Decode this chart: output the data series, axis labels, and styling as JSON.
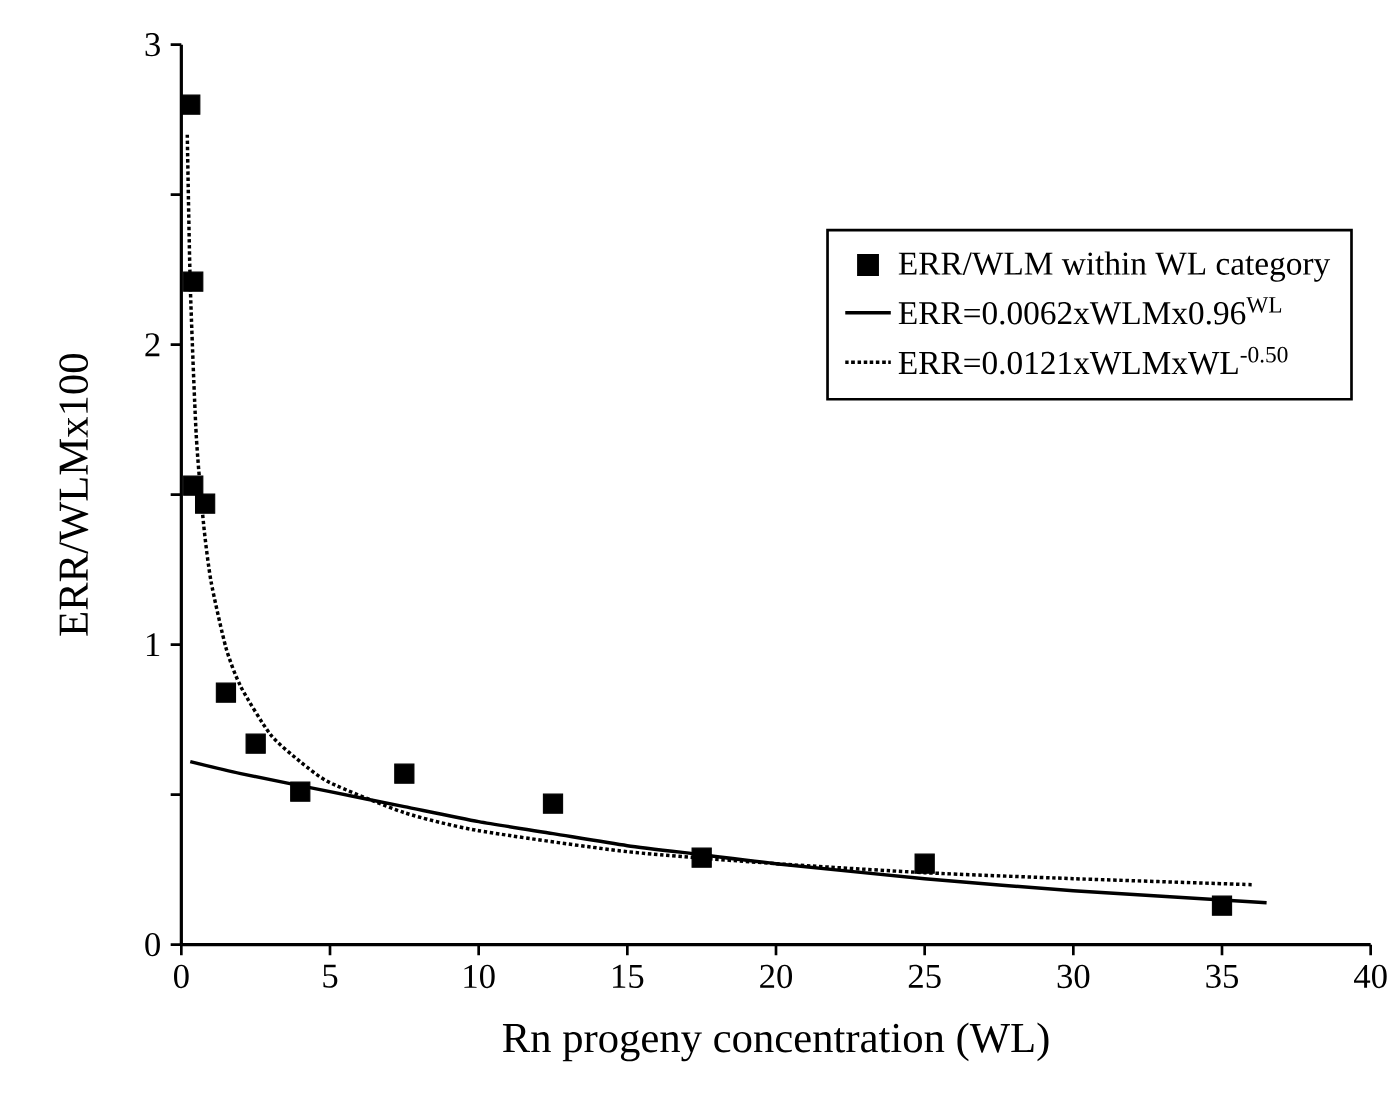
{
  "chart_data": {
    "type": "scatter",
    "xlabel": "Rn progeny concentration (WL)",
    "ylabel": "ERR/WLMx100",
    "xlim": [
      0,
      40
    ],
    "xticks": [
      0,
      5,
      10,
      15,
      20,
      25,
      30,
      35,
      40
    ],
    "ylim": [
      0,
      3
    ],
    "yticks": [
      0,
      {
        "value": 0.5,
        "label": null
      },
      1,
      {
        "value": 1.5,
        "label": null
      },
      2,
      {
        "value": 2.5,
        "label": null
      },
      3
    ],
    "legend": "right",
    "grid": false,
    "series": [
      {
        "name": "ERR/WLM within WL category",
        "marker": "square",
        "color": "#000000",
        "x": [
          0.3,
          0.4,
          0.4,
          0.8,
          1.5,
          2.5,
          4,
          7.5,
          12.5,
          17.5,
          25,
          35
        ],
        "values": [
          2.8,
          2.21,
          1.53,
          1.47,
          0.84,
          0.67,
          0.51,
          0.57,
          0.47,
          0.29,
          0.27,
          0.13
        ]
      },
      {
        "name": "ERR=0.0062xWLMx0.96$^{WL}$",
        "type": "line",
        "line_style": "solid",
        "color": "#000000",
        "x": [
          0.3,
          2,
          5,
          7.5,
          10,
          12.5,
          15,
          17.5,
          20,
          25,
          30,
          36.5
        ],
        "values": [
          0.61,
          0.57,
          0.51,
          0.46,
          0.41,
          0.37,
          0.33,
          0.3,
          0.27,
          0.22,
          0.18,
          0.14
        ]
      },
      {
        "name": "ERR=0.0121xWLMxWL$^{-0.50}$",
        "type": "line",
        "line_style": "dotted",
        "color": "#000000",
        "x": [
          0.2,
          0.3,
          0.5,
          0.75,
          1,
          1.5,
          2,
          3,
          4,
          5,
          7.5,
          10,
          15,
          20,
          25,
          30,
          36
        ],
        "values": [
          2.7,
          2.2,
          1.7,
          1.4,
          1.21,
          0.99,
          0.86,
          0.7,
          0.61,
          0.54,
          0.44,
          0.38,
          0.31,
          0.27,
          0.24,
          0.22,
          0.2
        ]
      }
    ]
  }
}
